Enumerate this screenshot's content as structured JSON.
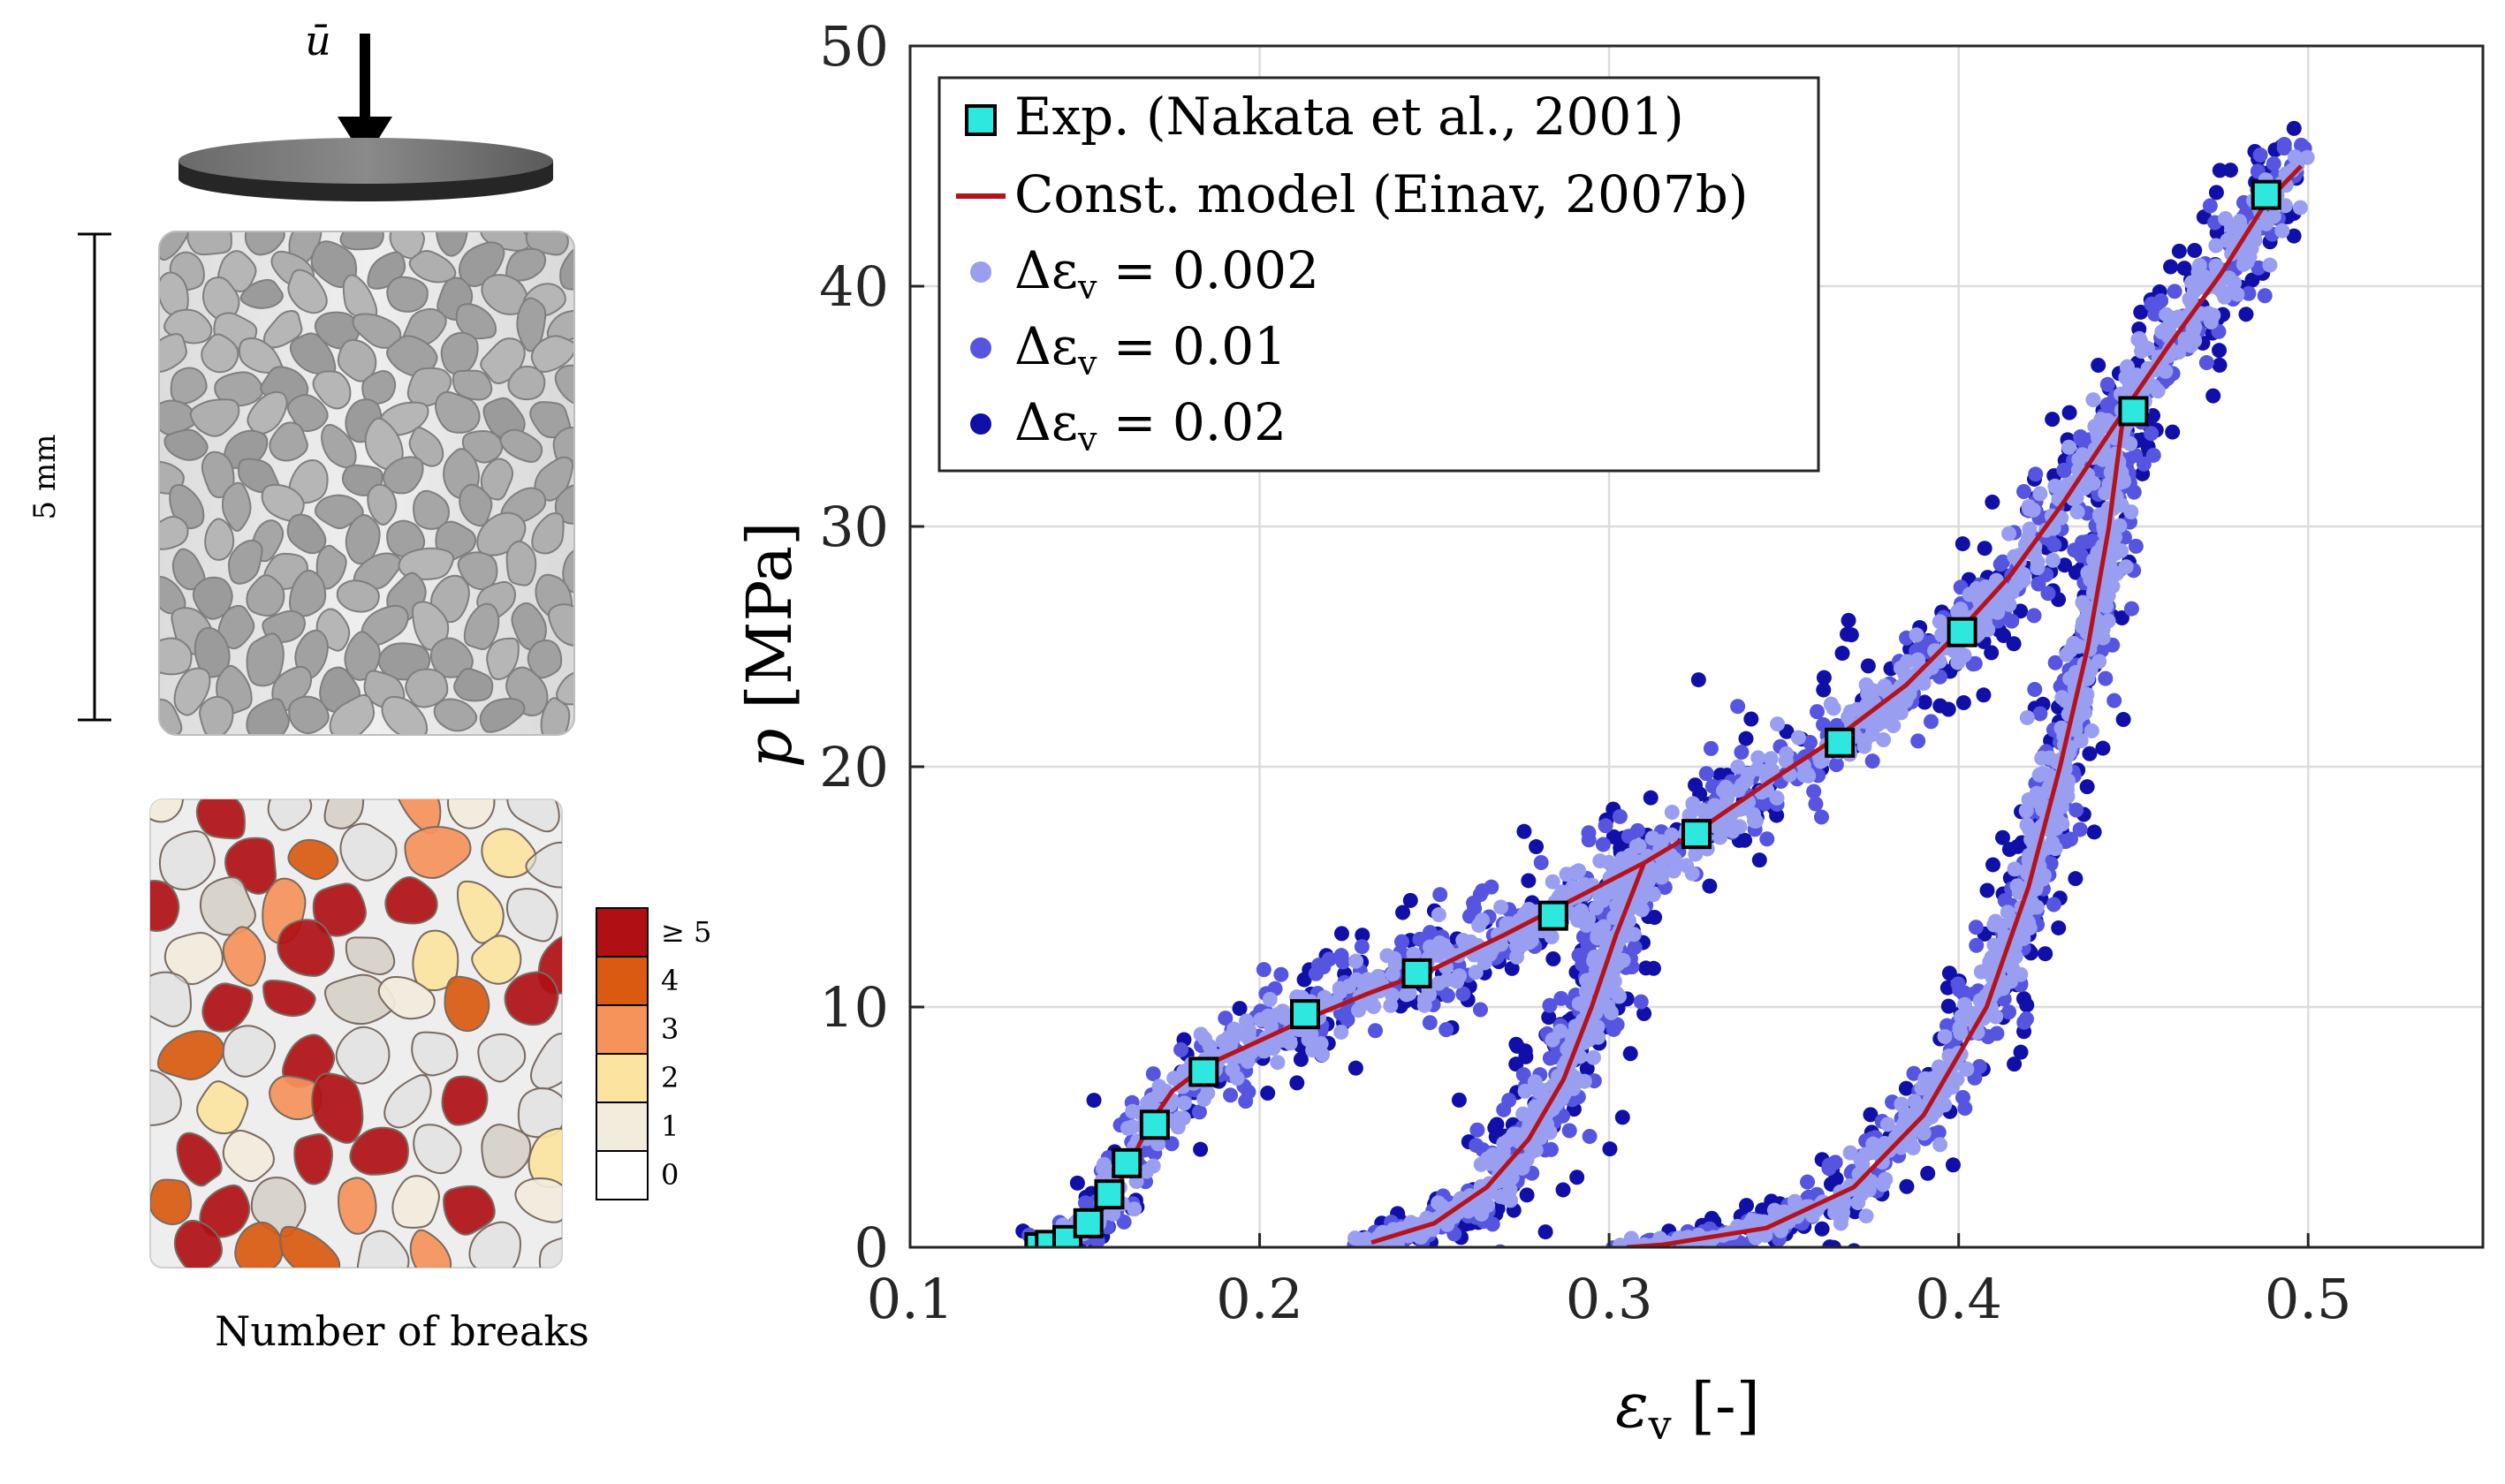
{
  "left_panel": {
    "load_symbol": "ū",
    "scale_label": "5 mm",
    "colorbar": {
      "title": "Number of breaks",
      "levels": [
        {
          "label": "≥ 5",
          "color": "#b01014"
        },
        {
          "label": "4",
          "color": "#d95a10"
        },
        {
          "label": "3",
          "color": "#f5935a"
        },
        {
          "label": "2",
          "color": "#fbe3a0"
        },
        {
          "label": "1",
          "color": "#f2ecdc"
        },
        {
          "label": "0",
          "color": "#ffffff"
        }
      ]
    }
  },
  "chart_data": {
    "type": "scatter",
    "xlabel_symbol": "ε",
    "xlabel_sub": "v",
    "xlabel_unit": "[-]",
    "ylabel_symbol": "p",
    "ylabel_unit": "[MPa]",
    "xlim": [
      0.1,
      0.55
    ],
    "ylim": [
      0,
      50
    ],
    "xticks": [
      0.1,
      0.2,
      0.3,
      0.4,
      0.5
    ],
    "yticks": [
      0,
      10,
      20,
      30,
      40,
      50
    ],
    "xtick_labels": [
      "0.1",
      "0.2",
      "0.3",
      "0.4",
      "0.5"
    ],
    "ytick_labels": [
      "0",
      "10",
      "20",
      "30",
      "40",
      "50"
    ],
    "grid": true,
    "legend_position": "top-left",
    "legend": [
      {
        "key": "exp",
        "label": "Exp. (Nakata et al., 2001)"
      },
      {
        "key": "model",
        "label": "Const. model (Einav, 2007b)"
      },
      {
        "key": "de002",
        "label": "Δε",
        "sub": "v",
        "rest": " = 0.002"
      },
      {
        "key": "de01",
        "label": "Δε",
        "sub": "v",
        "rest": " = 0.01"
      },
      {
        "key": "de02",
        "label": "Δε",
        "sub": "v",
        "rest": " = 0.02"
      }
    ],
    "colors": {
      "exp_fill": "#2ee8df",
      "model": "#b5121b",
      "de002": "#9a9ef0",
      "de01": "#5555e0",
      "de02": "#1010a8"
    },
    "model_loading": [
      [
        0.137,
        0.0
      ],
      [
        0.145,
        0.3
      ],
      [
        0.152,
        1.0
      ],
      [
        0.158,
        2.2
      ],
      [
        0.163,
        3.5
      ],
      [
        0.168,
        5.0
      ],
      [
        0.175,
        6.5
      ],
      [
        0.185,
        7.6
      ],
      [
        0.2,
        8.6
      ],
      [
        0.215,
        9.6
      ],
      [
        0.23,
        10.5
      ],
      [
        0.25,
        11.6
      ],
      [
        0.27,
        13.0
      ],
      [
        0.29,
        14.5
      ],
      [
        0.31,
        16.0
      ],
      [
        0.325,
        17.3
      ],
      [
        0.345,
        19.3
      ],
      [
        0.365,
        21.2
      ],
      [
        0.385,
        23.4
      ],
      [
        0.4,
        25.6
      ],
      [
        0.415,
        28.0
      ],
      [
        0.43,
        31.0
      ],
      [
        0.445,
        34.3
      ],
      [
        0.46,
        37.5
      ],
      [
        0.475,
        40.5
      ],
      [
        0.488,
        43.5
      ],
      [
        0.498,
        45.0
      ]
    ],
    "model_unload_1": [
      [
        0.31,
        16.0
      ],
      [
        0.302,
        13.0
      ],
      [
        0.295,
        10.0
      ],
      [
        0.287,
        7.0
      ],
      [
        0.277,
        4.5
      ],
      [
        0.265,
        2.5
      ],
      [
        0.25,
        1.0
      ],
      [
        0.232,
        0.2
      ]
    ],
    "model_unload_2": [
      [
        0.447,
        34.5
      ],
      [
        0.443,
        30.0
      ],
      [
        0.437,
        25.0
      ],
      [
        0.429,
        20.0
      ],
      [
        0.42,
        15.0
      ],
      [
        0.408,
        10.0
      ],
      [
        0.39,
        5.5
      ],
      [
        0.37,
        2.5
      ],
      [
        0.345,
        0.8
      ],
      [
        0.315,
        0.1
      ],
      [
        0.305,
        0.0
      ]
    ],
    "experiment": [
      [
        0.137,
        0.0
      ],
      [
        0.14,
        0.1
      ],
      [
        0.145,
        0.3
      ],
      [
        0.151,
        1.0
      ],
      [
        0.157,
        2.2
      ],
      [
        0.162,
        3.5
      ],
      [
        0.17,
        5.1
      ],
      [
        0.184,
        7.3
      ],
      [
        0.213,
        9.7
      ],
      [
        0.245,
        11.4
      ],
      [
        0.284,
        13.8
      ],
      [
        0.325,
        17.2
      ],
      [
        0.366,
        21.0
      ],
      [
        0.401,
        25.6
      ],
      [
        0.45,
        34.8
      ],
      [
        0.488,
        43.8
      ]
    ],
    "scatter_spread": {
      "de002": 0.0045,
      "de01": 0.0075,
      "de02": 0.0115
    }
  }
}
